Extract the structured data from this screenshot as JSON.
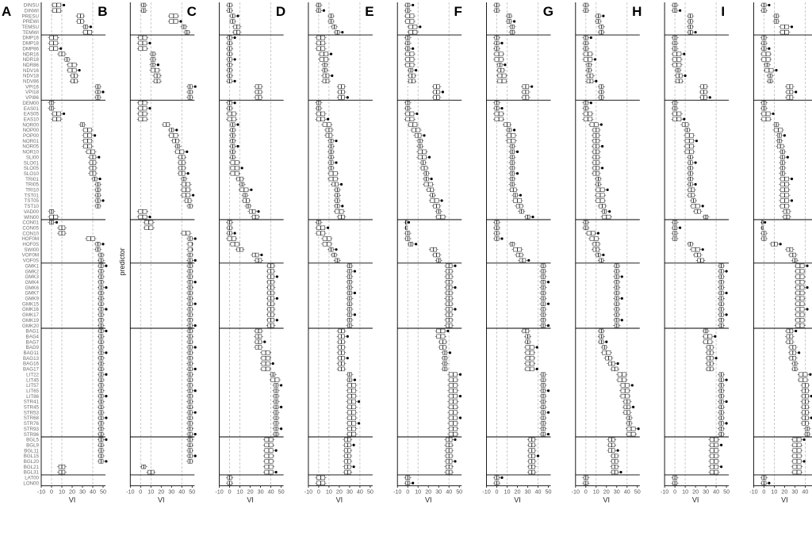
{
  "chart_data": {
    "type": "box",
    "panels": [
      "A",
      "B",
      "C",
      "D",
      "E",
      "F",
      "G",
      "H",
      "I"
    ],
    "xlabel": "VI",
    "ylabel": "predictor",
    "xlim": [
      -10,
      50
    ],
    "xticks": [
      -10,
      0,
      10,
      20,
      30,
      40,
      50
    ],
    "reference_lines": [
      0,
      10,
      40
    ],
    "groups": [
      [
        "DINSU",
        "DINWI",
        "PRESU",
        "PREWI",
        "TEMSU",
        "TEMWI"
      ],
      [
        "DMP16",
        "DMP18",
        "DMP86",
        "NDR16",
        "NDR18",
        "NDR86",
        "NDV16",
        "NDV18",
        "NDV86",
        "VPI16",
        "VPI18",
        "VPI86"
      ],
      [
        "DEM00",
        "EAS01",
        "EAS05",
        "EAS10",
        "NOR00",
        "NOP00",
        "POP00",
        "NOR01",
        "NOR05",
        "NOR10",
        "SLI00",
        "SLO01",
        "SLO05",
        "SLO10",
        "TRI01",
        "TRI05",
        "TRI10",
        "TST01",
        "TST05",
        "TST10",
        "VAD00",
        "WIN00"
      ],
      [
        "CON01",
        "CON05",
        "CON10",
        "HOF0M",
        "HOF0S",
        "SWI00",
        "VOF0M",
        "VOF0S"
      ],
      [
        "GMK1",
        "GMK2",
        "GMK3",
        "GMK4",
        "GMK6",
        "GMK7",
        "GMK9",
        "GMK15",
        "GMK16",
        "GMK17",
        "GMK19",
        "GMK20"
      ],
      [
        "BAG1",
        "BAG4",
        "BAG7",
        "BAG9",
        "BAG11",
        "BAG13",
        "BAG16",
        "BAG17",
        "LIT22",
        "LIT45",
        "LIT57",
        "LIT65",
        "LIT86",
        "STR41",
        "STR45",
        "STR53",
        "STR68",
        "STR76",
        "STR93",
        "STR96"
      ],
      [
        "BGL5",
        "BGL9",
        "BGL11",
        "BGL15",
        "BGL20",
        "BGL21",
        "BGL31"
      ],
      [
        "LAT00",
        "LON00"
      ]
    ],
    "medians": [
      [
        5,
        5,
        28,
        28,
        33,
        35,
        2,
        2,
        2,
        10,
        15,
        20,
        20,
        22,
        22,
        45,
        45,
        45,
        0,
        0,
        5,
        5,
        30,
        35,
        35,
        35,
        35,
        38,
        40,
        40,
        40,
        40,
        42,
        45,
        45,
        45,
        45,
        45,
        0,
        2,
        0,
        10,
        10,
        38,
        45,
        45,
        48,
        48,
        48,
        48,
        48,
        48,
        48,
        48,
        48,
        48,
        48,
        48,
        48,
        48,
        48,
        48,
        48,
        48,
        48,
        48,
        48,
        48,
        48,
        48,
        48,
        48,
        48,
        48,
        48,
        48,
        48,
        48,
        48,
        48,
        48,
        48,
        48,
        48,
        48,
        10,
        10
      ],
      [
        3,
        3,
        32,
        32,
        42,
        45,
        2,
        2,
        2,
        12,
        12,
        12,
        14,
        16,
        16,
        48,
        48,
        48,
        2,
        2,
        2,
        2,
        25,
        30,
        32,
        34,
        36,
        38,
        40,
        40,
        40,
        40,
        42,
        44,
        44,
        44,
        46,
        48,
        2,
        2,
        8,
        8,
        44,
        48,
        50,
        50,
        48,
        48,
        48,
        48,
        48,
        48,
        48,
        48,
        48,
        48,
        48,
        48,
        48,
        48,
        48,
        48,
        48,
        48,
        48,
        48,
        48,
        48,
        48,
        48,
        48,
        48,
        48,
        48,
        48,
        48,
        48,
        48,
        48,
        48,
        48,
        48,
        48,
        48,
        48,
        3,
        10
      ],
      [
        0,
        0,
        3,
        3,
        7,
        7,
        0,
        0,
        0,
        0,
        0,
        0,
        0,
        0,
        0,
        28,
        28,
        28,
        0,
        0,
        2,
        2,
        3,
        3,
        3,
        3,
        3,
        3,
        3,
        5,
        5,
        5,
        10,
        12,
        14,
        15,
        16,
        18,
        22,
        25,
        0,
        0,
        0,
        2,
        5,
        10,
        25,
        28,
        40,
        40,
        40,
        40,
        40,
        40,
        40,
        40,
        40,
        40,
        40,
        40,
        28,
        28,
        28,
        28,
        35,
        35,
        35,
        35,
        42,
        44,
        45,
        45,
        45,
        45,
        45,
        45,
        45,
        45,
        45,
        45,
        38,
        38,
        38,
        38,
        38,
        38,
        38,
        0,
        0
      ],
      [
        0,
        0,
        12,
        12,
        15,
        18,
        2,
        2,
        2,
        5,
        5,
        6,
        6,
        7,
        7,
        22,
        22,
        22,
        0,
        0,
        2,
        2,
        8,
        10,
        10,
        12,
        12,
        12,
        12,
        12,
        12,
        14,
        14,
        16,
        18,
        18,
        18,
        18,
        20,
        22,
        0,
        2,
        2,
        8,
        8,
        12,
        15,
        18,
        30,
        30,
        30,
        30,
        30,
        30,
        30,
        30,
        30,
        30,
        30,
        30,
        22,
        22,
        22,
        22,
        22,
        22,
        22,
        22,
        30,
        30,
        32,
        32,
        32,
        32,
        32,
        32,
        32,
        32,
        32,
        32,
        28,
        28,
        28,
        28,
        28,
        28,
        28,
        2,
        2
      ],
      [
        0,
        0,
        2,
        2,
        5,
        5,
        0,
        0,
        0,
        2,
        2,
        2,
        3,
        4,
        4,
        28,
        28,
        28,
        0,
        0,
        2,
        2,
        5,
        8,
        10,
        12,
        12,
        14,
        14,
        15,
        16,
        18,
        18,
        20,
        22,
        24,
        26,
        28,
        30,
        32,
        -2,
        -2,
        0,
        0,
        3,
        25,
        28,
        30,
        40,
        40,
        40,
        40,
        40,
        40,
        40,
        40,
        40,
        40,
        40,
        40,
        32,
        32,
        34,
        34,
        36,
        36,
        36,
        36,
        44,
        44,
        44,
        44,
        44,
        44,
        44,
        44,
        44,
        44,
        44,
        44,
        40,
        40,
        40,
        40,
        40,
        40,
        40,
        0,
        0
      ],
      [
        0,
        0,
        12,
        12,
        15,
        15,
        0,
        0,
        0,
        2,
        2,
        3,
        4,
        5,
        5,
        28,
        28,
        28,
        0,
        0,
        2,
        2,
        10,
        12,
        14,
        14,
        15,
        15,
        15,
        15,
        15,
        15,
        15,
        15,
        16,
        18,
        20,
        22,
        24,
        30,
        0,
        0,
        0,
        0,
        15,
        20,
        22,
        25,
        45,
        45,
        45,
        45,
        45,
        45,
        45,
        45,
        45,
        45,
        45,
        45,
        28,
        30,
        30,
        32,
        32,
        32,
        32,
        32,
        45,
        45,
        45,
        45,
        45,
        45,
        45,
        45,
        45,
        45,
        45,
        45,
        34,
        34,
        34,
        34,
        34,
        34,
        34,
        0,
        0
      ],
      [
        0,
        0,
        12,
        12,
        15,
        15,
        0,
        0,
        0,
        2,
        2,
        3,
        3,
        4,
        4,
        15,
        15,
        15,
        0,
        0,
        2,
        2,
        8,
        10,
        10,
        10,
        10,
        10,
        10,
        10,
        10,
        10,
        12,
        12,
        14,
        14,
        14,
        16,
        18,
        20,
        0,
        0,
        5,
        8,
        10,
        10,
        12,
        15,
        30,
        30,
        30,
        30,
        30,
        30,
        30,
        30,
        30,
        30,
        30,
        30,
        15,
        15,
        15,
        18,
        20,
        22,
        25,
        28,
        35,
        35,
        38,
        38,
        38,
        40,
        40,
        40,
        42,
        42,
        44,
        44,
        25,
        25,
        25,
        28,
        28,
        28,
        28,
        0,
        0
      ],
      [
        0,
        0,
        15,
        15,
        15,
        15,
        0,
        0,
        0,
        2,
        2,
        2,
        3,
        4,
        4,
        28,
        28,
        28,
        0,
        0,
        2,
        2,
        10,
        12,
        14,
        14,
        14,
        14,
        15,
        15,
        15,
        15,
        15,
        15,
        16,
        16,
        18,
        20,
        22,
        30,
        0,
        0,
        0,
        0,
        15,
        20,
        22,
        25,
        45,
        45,
        45,
        45,
        45,
        45,
        45,
        45,
        45,
        45,
        45,
        45,
        30,
        32,
        32,
        34,
        34,
        34,
        34,
        34,
        45,
        45,
        45,
        45,
        45,
        45,
        45,
        45,
        45,
        45,
        45,
        45,
        38,
        38,
        38,
        38,
        38,
        38,
        38,
        0,
        0
      ],
      [
        0,
        0,
        12,
        12,
        20,
        20,
        0,
        0,
        0,
        2,
        2,
        3,
        5,
        6,
        6,
        25,
        25,
        25,
        0,
        0,
        2,
        2,
        12,
        14,
        15,
        15,
        16,
        18,
        18,
        18,
        18,
        18,
        20,
        20,
        20,
        20,
        20,
        20,
        22,
        22,
        -2,
        -2,
        0,
        0,
        10,
        25,
        28,
        30,
        35,
        35,
        35,
        35,
        35,
        35,
        35,
        35,
        35,
        35,
        35,
        35,
        25,
        25,
        25,
        28,
        28,
        28,
        30,
        30,
        38,
        38,
        40,
        40,
        40,
        40,
        40,
        40,
        40,
        40,
        42,
        42,
        32,
        32,
        32,
        32,
        32,
        32,
        32,
        0,
        0
      ]
    ]
  }
}
